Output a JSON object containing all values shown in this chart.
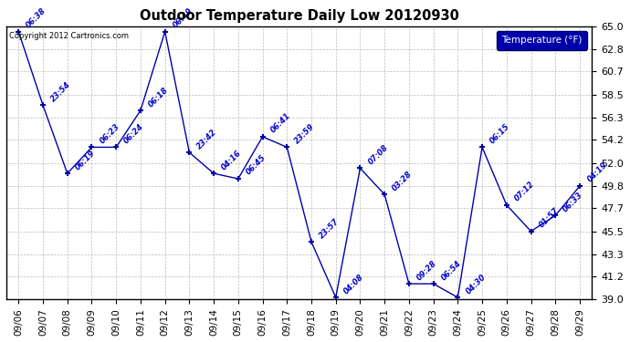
{
  "title": "Outdoor Temperature Daily Low 20120930",
  "copyright": "Copyright 2012 Cartronics.com",
  "legend_label": "Temperature (°F)",
  "dates": [
    "09/06",
    "09/07",
    "09/08",
    "09/09",
    "09/10",
    "09/11",
    "09/12",
    "09/13",
    "09/14",
    "09/15",
    "09/16",
    "09/17",
    "09/18",
    "09/19",
    "09/20",
    "09/21",
    "09/22",
    "09/23",
    "09/24",
    "09/25",
    "09/26",
    "09/27",
    "09/28",
    "09/29"
  ],
  "temperatures": [
    64.5,
    57.5,
    51.0,
    53.5,
    53.5,
    57.0,
    64.5,
    53.0,
    51.0,
    50.5,
    54.5,
    53.5,
    44.5,
    39.2,
    51.5,
    49.0,
    40.5,
    40.5,
    39.2,
    53.5,
    48.0,
    45.5,
    47.0,
    49.8
  ],
  "time_labels": [
    "06:38",
    "23:54",
    "06:19",
    "06:23",
    "06:24",
    "06:18",
    "06:49",
    "23:42",
    "04:16",
    "06:45",
    "06:41",
    "23:59",
    "23:57",
    "04:08",
    "07:08",
    "03:28",
    "09:28",
    "06:54",
    "04:30",
    "06:15",
    "07:12",
    "01:57",
    "06:33",
    "04:19"
  ],
  "ylim_low": 39.0,
  "ylim_high": 65.0,
  "yticks": [
    39.0,
    41.2,
    43.3,
    45.5,
    47.7,
    49.8,
    52.0,
    54.2,
    56.3,
    58.5,
    60.7,
    62.8,
    65.0
  ],
  "line_color": "#0000aa",
  "label_color": "#0000cc",
  "grid_color": "#bbbbbb",
  "bg_color": "#ffffff",
  "title_color": "#000000",
  "copyright_color": "#000000",
  "legend_bg": "#0000aa",
  "legend_text_color": "#ffffff",
  "figwidth": 6.9,
  "figheight": 3.75,
  "dpi": 100
}
